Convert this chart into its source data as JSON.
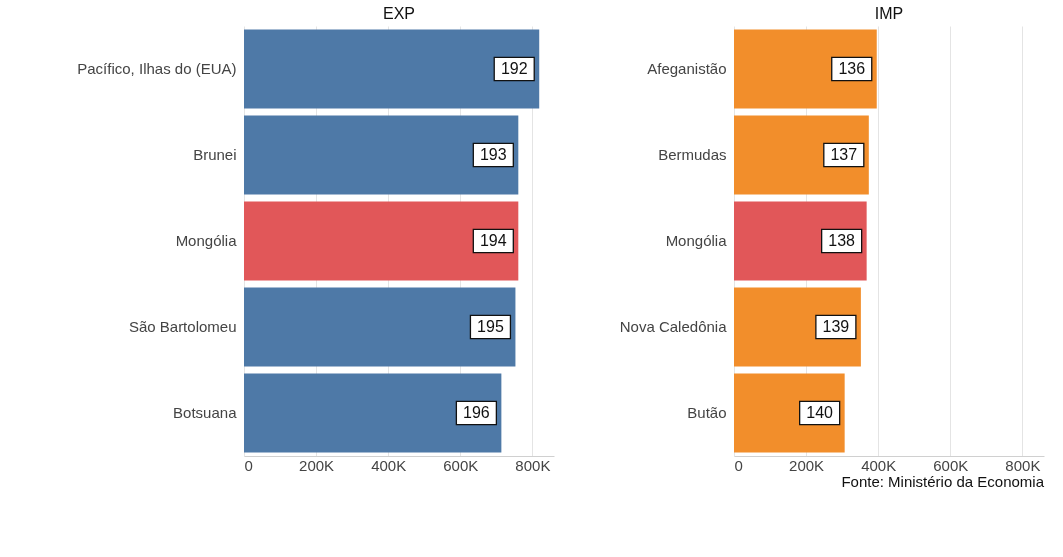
{
  "chart_data": [
    {
      "type": "bar",
      "orientation": "horizontal",
      "title": "EXP",
      "categories": [
        "Pacífico, Ilhas do (EUA)",
        "Brunei",
        "Mongólia",
        "São Bartolomeu",
        "Botsuana"
      ],
      "values": [
        819000,
        761000,
        761000,
        753000,
        714000
      ],
      "colors": [
        "#4e79a7",
        "#4e79a7",
        "#e15759",
        "#4e79a7",
        "#4e79a7"
      ],
      "annotations": [
        {
          "text": "192",
          "x": 819000,
          "y": "Pacífico, Ilhas do (EUA)"
        },
        {
          "text": "193",
          "x": 761000,
          "y": "Brunei"
        },
        {
          "text": "194",
          "x": 761000,
          "y": "Mongólia"
        },
        {
          "text": "195",
          "x": 753000,
          "y": "São Bartolomeu"
        },
        {
          "text": "196",
          "x": 714000,
          "y": "Botsuana"
        }
      ],
      "xlim": [
        0,
        860000
      ],
      "xticks": [
        0,
        {
          "value": 200000,
          "label": "200K"
        },
        {
          "value": 400000,
          "label": "400K"
        },
        {
          "value": 600000,
          "label": "600K"
        },
        {
          "value": 800000,
          "label": "800K"
        }
      ],
      "grid": true
    },
    {
      "type": "bar",
      "orientation": "horizontal",
      "title": "IMP",
      "categories": [
        "Afeganistão",
        "Bermudas",
        "Mongólia",
        "Nova Caledônia",
        "Butão"
      ],
      "values": [
        396000,
        374000,
        368000,
        352000,
        307000
      ],
      "colors": [
        "#f28e2b",
        "#f28e2b",
        "#e15759",
        "#f28e2b",
        "#f28e2b"
      ],
      "annotations": [
        {
          "text": "136",
          "x": 396000,
          "y": "Afeganistão"
        },
        {
          "text": "137",
          "x": 374000,
          "y": "Bermudas"
        },
        {
          "text": "138",
          "x": 368000,
          "y": "Mongólia"
        },
        {
          "text": "139",
          "x": 352000,
          "y": "Nova Caledônia"
        },
        {
          "text": "140",
          "x": 307000,
          "y": "Butão"
        },
        "Fonte: Ministério da Economia"
      ],
      "xlim": [
        0,
        860000
      ],
      "xticks": [
        0,
        {
          "value": 200000,
          "label": "200K"
        },
        {
          "value": 400000,
          "label": "400K"
        },
        {
          "value": 600000,
          "label": "600K"
        },
        {
          "value": 800000,
          "label": "800K"
        }
      ],
      "grid": true
    }
  ]
}
